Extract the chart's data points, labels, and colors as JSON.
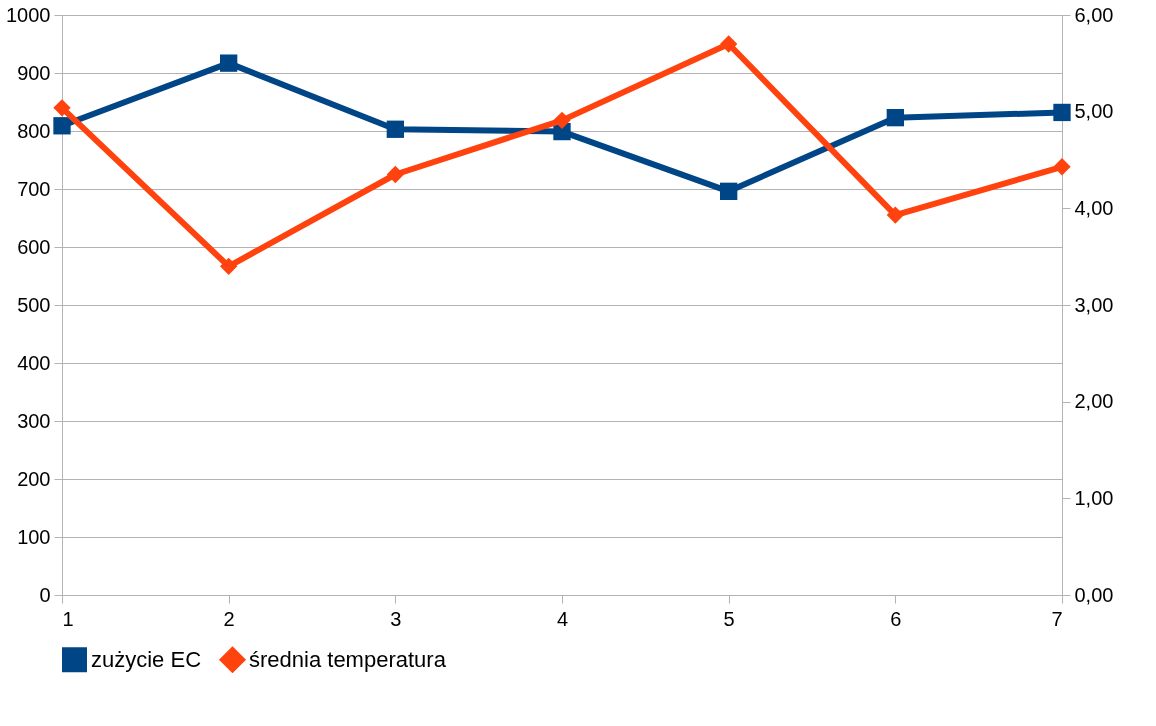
{
  "chart_data": {
    "type": "line",
    "x": [
      1,
      2,
      3,
      4,
      5,
      6,
      7
    ],
    "xlim": [
      1,
      7
    ],
    "xticks": [
      1,
      2,
      3,
      4,
      5,
      6,
      7
    ],
    "ylim": [
      0,
      1000
    ],
    "yticks": [
      0,
      100,
      200,
      300,
      400,
      500,
      600,
      700,
      800,
      900,
      1000
    ],
    "y2lim": [
      0,
      6
    ],
    "y2ticks": [
      {
        "value": 0,
        "label": "0,00"
      },
      {
        "value": 1,
        "label": "1,00"
      },
      {
        "value": 2,
        "label": "2,00"
      },
      {
        "value": 3,
        "label": "3,00"
      },
      {
        "value": 4,
        "label": "4,00"
      },
      {
        "value": 5,
        "label": "5,00"
      },
      {
        "value": 6,
        "label": "6,00"
      }
    ],
    "series": [
      {
        "name": "zużycie EC",
        "color": "#004586",
        "marker": "square",
        "values": [
          809,
          917,
          803,
          799,
          696,
          823,
          832
        ]
      },
      {
        "name": "średnia temperatura",
        "color": "#ff420e",
        "marker": "diamond",
        "axis": "y2",
        "values": [
          5.04,
          3.4,
          4.35,
          4.91,
          5.7,
          3.93,
          4.43
        ]
      }
    ],
    "grid": "y",
    "legend": "bottom",
    "line_style": "solid"
  }
}
